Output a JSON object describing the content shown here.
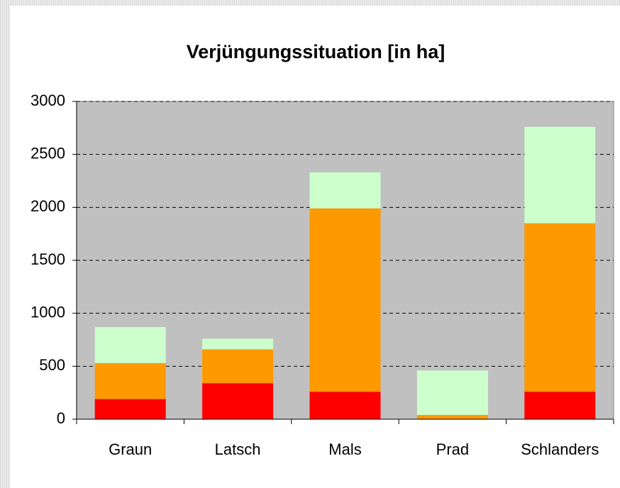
{
  "chart_data": {
    "type": "stacked_bar",
    "title": "Verjüngungssituation [in ha]",
    "categories": [
      "Graun",
      "Latsch",
      "Mals",
      "Prad",
      "Schlanders"
    ],
    "series": [
      {
        "color": "#ff0000",
        "values": [
          190,
          340,
          260,
          0,
          260
        ]
      },
      {
        "color": "#ff9900",
        "values": [
          340,
          320,
          1730,
          40,
          1590
        ]
      },
      {
        "color": "#ccffcc",
        "values": [
          340,
          100,
          340,
          420,
          910
        ]
      }
    ],
    "ylim": [
      0,
      3000
    ],
    "yticks": [
      0,
      500,
      1000,
      1500,
      2000,
      2500,
      3000
    ],
    "grid": true
  }
}
